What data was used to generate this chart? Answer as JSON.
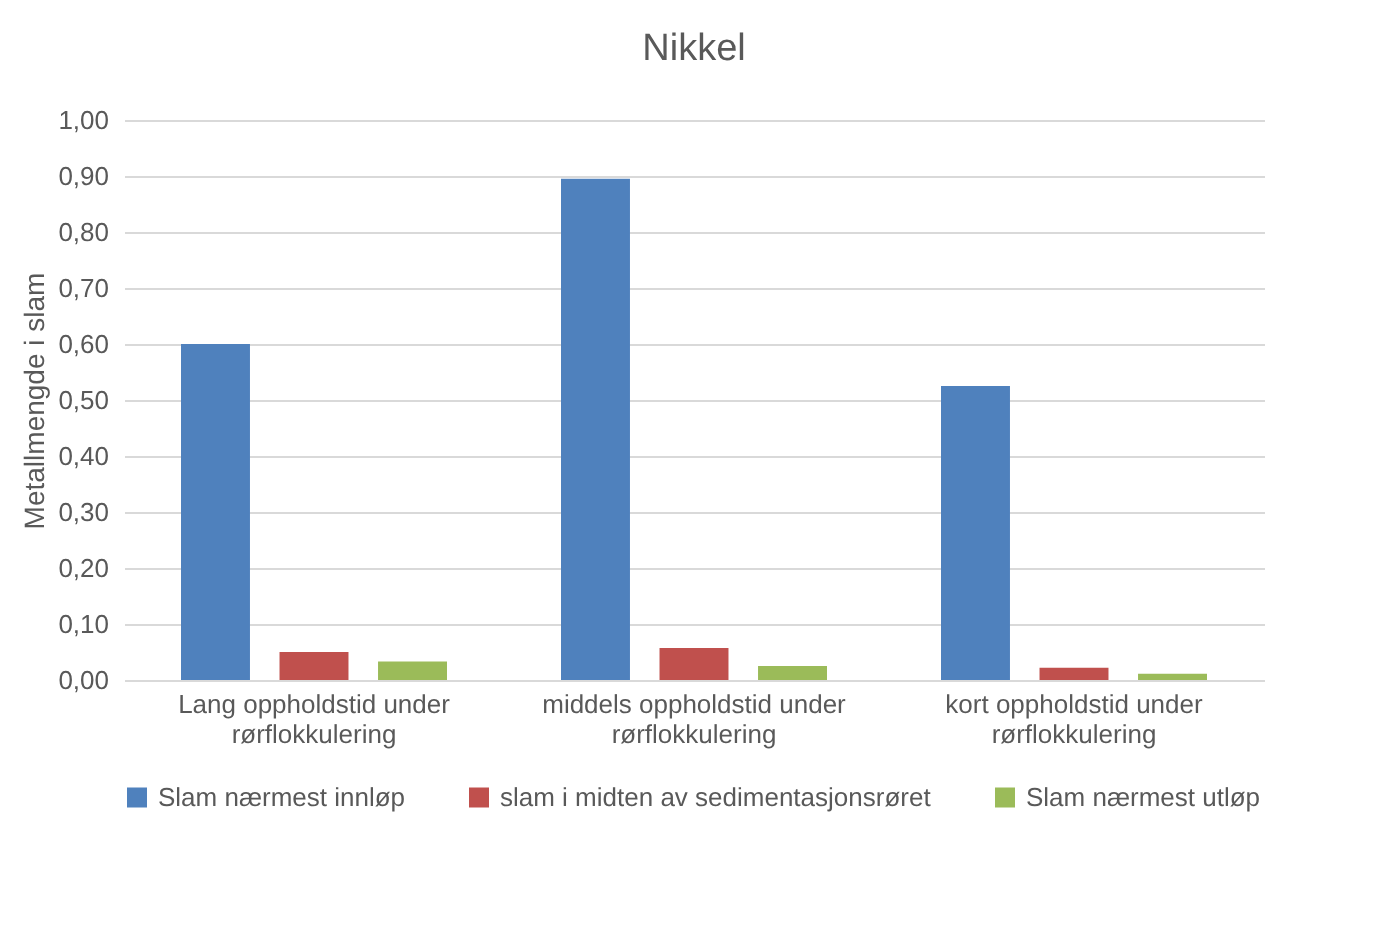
{
  "chart_data": {
    "type": "bar",
    "title": "Nikkel",
    "ylabel": "Metallmengde i slam",
    "categories": [
      "Lang oppholdstid under rørflokkulering",
      "middels oppholdstid under rørflokkulering",
      "kort oppholdstid under rørflokkulering"
    ],
    "series": [
      {
        "name": "Slam nærmest innløp",
        "color": "#4f81bd",
        "values": [
          0.6,
          0.895,
          0.525
        ]
      },
      {
        "name": "slam i midten av sedimentasjonsrøret",
        "color": "#c0504d",
        "values": [
          0.05,
          0.057,
          0.022
        ]
      },
      {
        "name": "Slam nærmest utløp",
        "color": "#9bbb59",
        "values": [
          0.033,
          0.025,
          0.011
        ]
      }
    ],
    "ylim": [
      0,
      1
    ],
    "yticks": [
      {
        "value": 0,
        "label": "0,00"
      },
      {
        "value": 0.1,
        "label": "0,10"
      },
      {
        "value": 0.2,
        "label": "0,20"
      },
      {
        "value": 0.3,
        "label": "0,30"
      },
      {
        "value": 0.4,
        "label": "0,40"
      },
      {
        "value": 0.5,
        "label": "0,50"
      },
      {
        "value": 0.6,
        "label": "0,60"
      },
      {
        "value": 0.7,
        "label": "0,70"
      },
      {
        "value": 0.8,
        "label": "0,80"
      },
      {
        "value": 0.9,
        "label": "0,90"
      },
      {
        "value": 1,
        "label": "1,00"
      }
    ],
    "grid": "y",
    "legend": "bottom"
  }
}
